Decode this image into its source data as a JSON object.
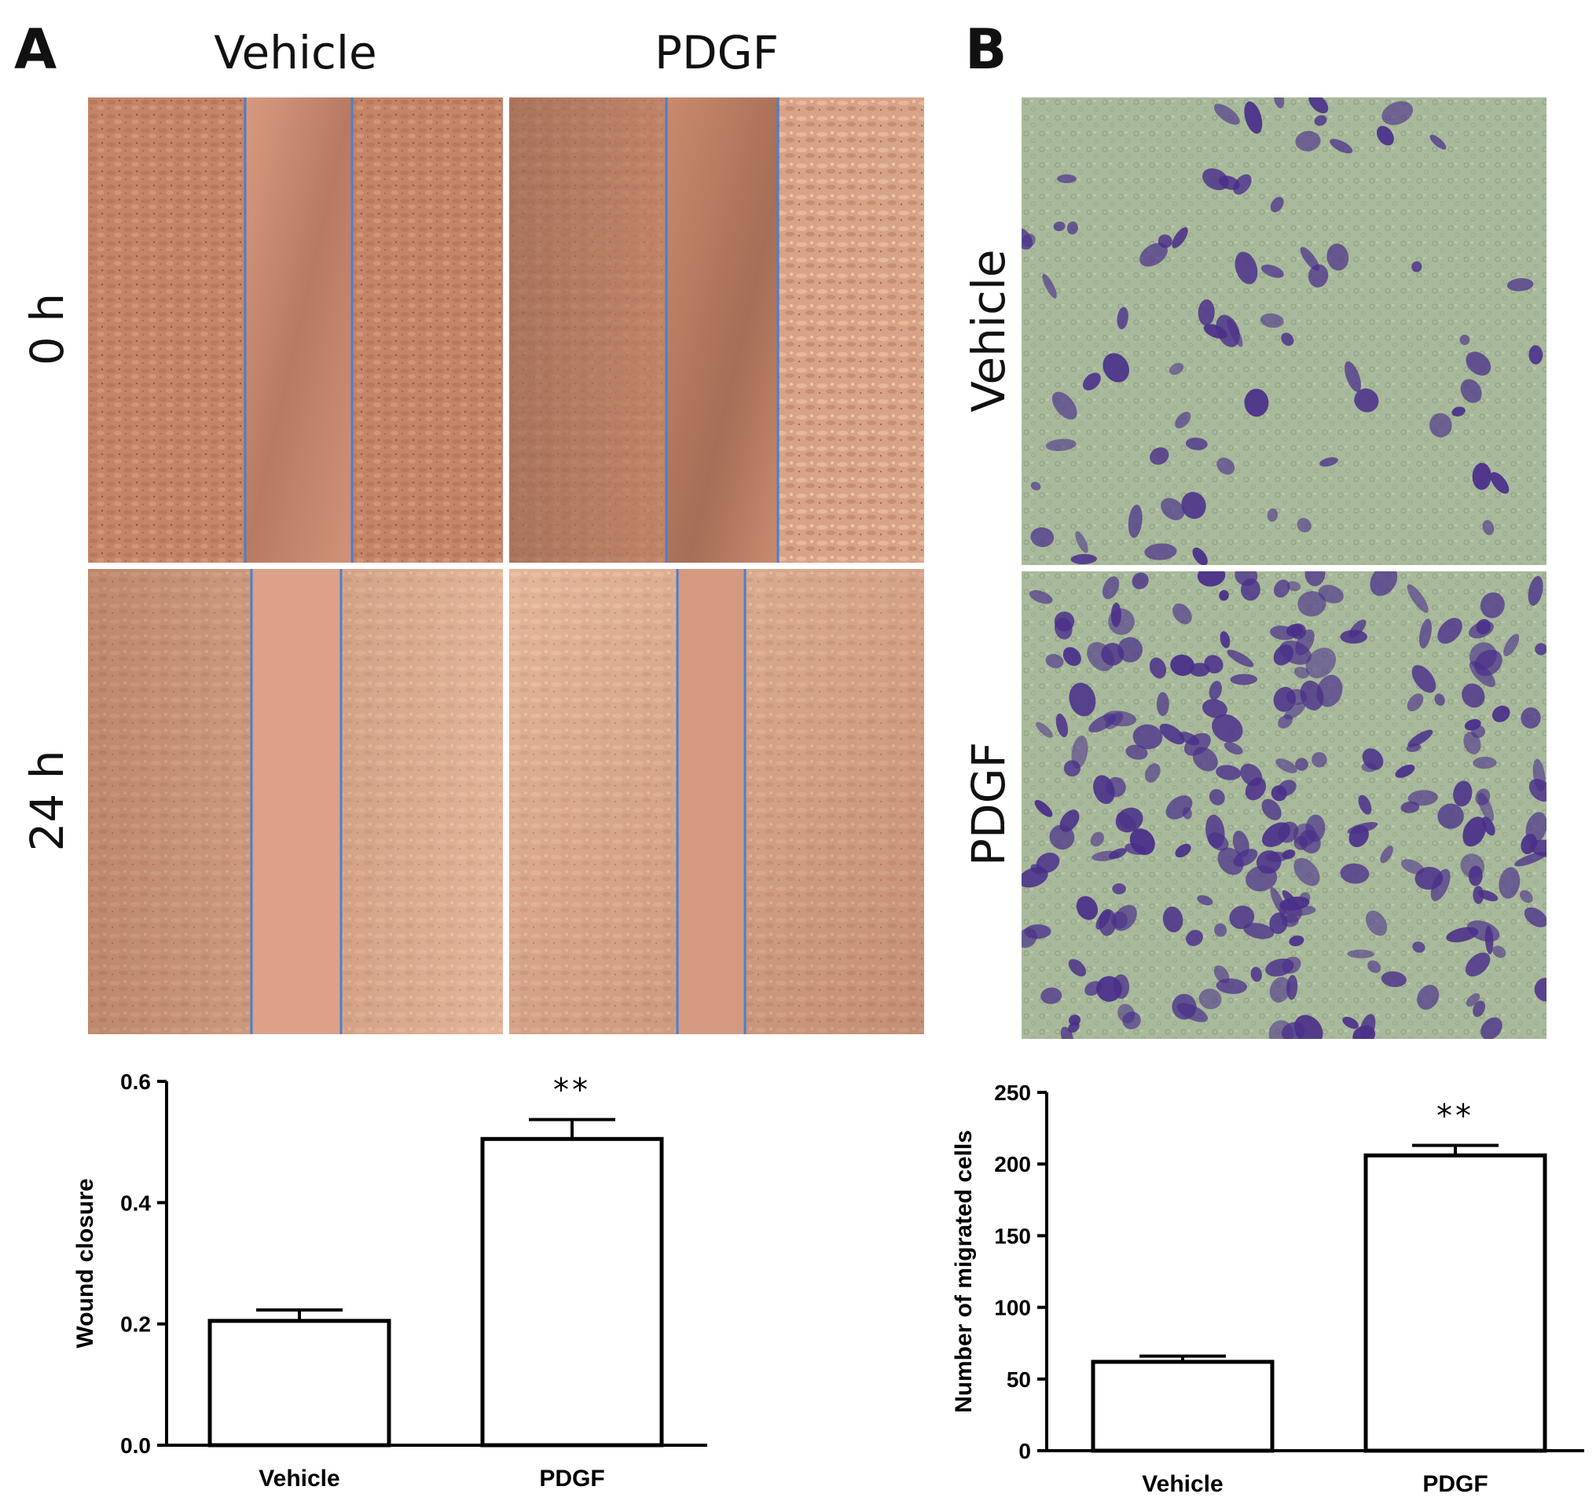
{
  "panels": {
    "a": {
      "letter": "A",
      "columns": [
        "Vehicle",
        "PDGF"
      ],
      "rows": [
        "0 h",
        "24 h"
      ]
    },
    "b": {
      "letter": "B",
      "rows": [
        "Vehicle",
        "PDGF"
      ]
    }
  },
  "colors": {
    "scratch_tissue": "#c8886a",
    "scratch_line": "#4a7fd0",
    "transwell_bg": "#a8b89a",
    "transwell_cells": "#4a2f8a"
  },
  "chart_data": [
    {
      "type": "bar",
      "categories": [
        "Vehicle",
        "PDGF"
      ],
      "values": [
        0.205,
        0.505
      ],
      "errors": [
        0.018,
        0.032
      ],
      "significance": [
        "",
        "**"
      ],
      "ylabel": "Wound closure",
      "xlabel": "",
      "ylim": [
        0,
        0.6
      ],
      "yticks": [
        "0.0",
        "0.2",
        "0.4",
        "0.6"
      ],
      "ytick_values": [
        0,
        0.2,
        0.4,
        0.6
      ]
    },
    {
      "type": "bar",
      "categories": [
        "Vehicle",
        "PDGF"
      ],
      "values": [
        62,
        206
      ],
      "errors": [
        4,
        7
      ],
      "significance": [
        "",
        "**"
      ],
      "ylabel": "Number of migrated cells",
      "xlabel": "",
      "ylim": [
        0,
        250
      ],
      "yticks": [
        "0",
        "50",
        "100",
        "150",
        "200",
        "250"
      ],
      "ytick_values": [
        0,
        50,
        100,
        150,
        200,
        250
      ]
    }
  ]
}
